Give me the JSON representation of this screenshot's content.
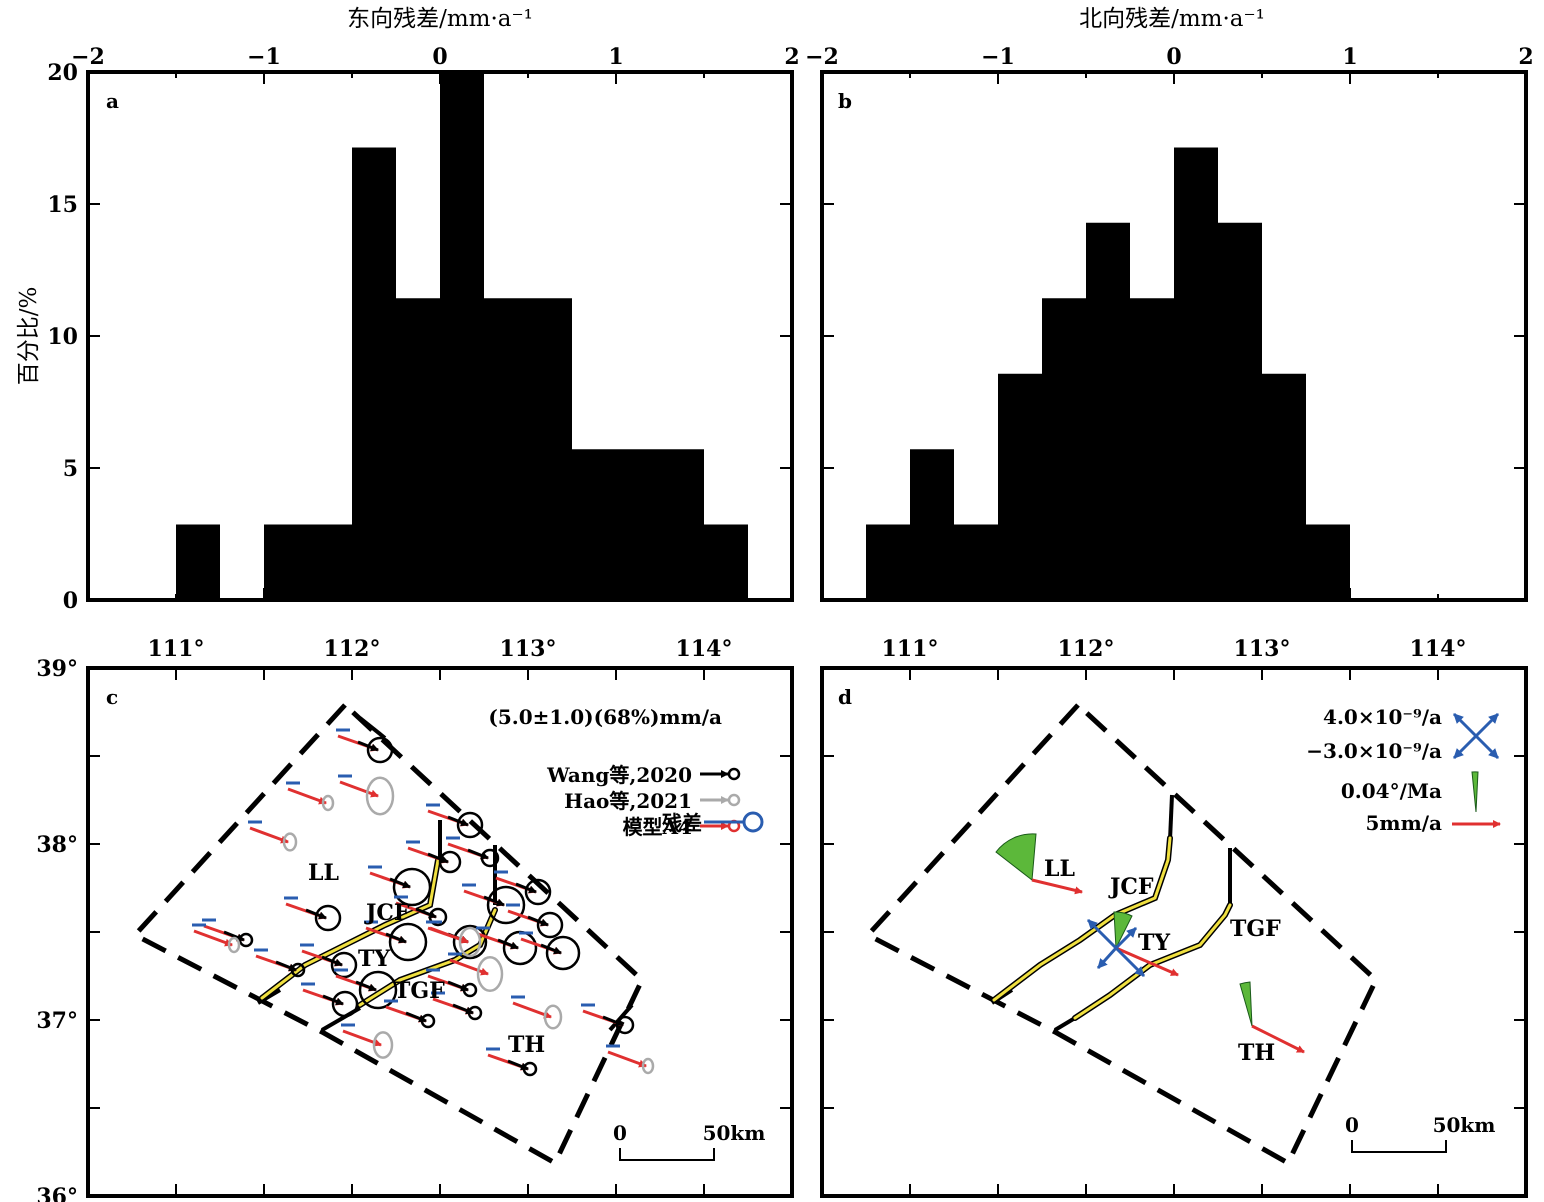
{
  "panels": {
    "a": {
      "tag": "a",
      "top_title": "东向残差/mm·a⁻¹",
      "ylabel": "百分比/%"
    },
    "b": {
      "tag": "b",
      "top_title": "北向残差/mm·a⁻¹"
    },
    "c": {
      "tag": "c"
    },
    "d": {
      "tag": "d"
    }
  },
  "hist_axes": {
    "x_ticks": [
      "−2",
      "−1",
      "0",
      "1",
      "2"
    ],
    "y_ticks": [
      "0",
      "5",
      "10",
      "15",
      "20"
    ]
  },
  "map_axes": {
    "x_ticks": [
      "111°",
      "112°",
      "113°",
      "114°"
    ],
    "y_ticks": [
      "39°",
      "38°",
      "37°",
      "36°"
    ]
  },
  "chart_data": [
    {
      "type": "bar",
      "panel": "a",
      "xlabel": "东向残差/mm·a⁻¹",
      "ylabel": "百分比/%",
      "xlim": [
        -2,
        2
      ],
      "ylim": [
        0,
        20
      ],
      "bin_width": 0.25,
      "bins": [
        {
          "x0": -1.5,
          "x1": -1.25,
          "y": 2.86
        },
        {
          "x0": -1.25,
          "x1": -1.0,
          "y": 0
        },
        {
          "x0": -1.0,
          "x1": -0.5,
          "y": 2.86
        },
        {
          "x0": -0.5,
          "x1": -0.25,
          "y": 17.14
        },
        {
          "x0": -0.25,
          "x1": 0.0,
          "y": 11.43
        },
        {
          "x0": 0.0,
          "x1": 0.25,
          "y": 20.0
        },
        {
          "x0": 0.25,
          "x1": 0.75,
          "y": 11.43
        },
        {
          "x0": 0.75,
          "x1": 1.5,
          "y": 5.71
        },
        {
          "x0": 1.5,
          "x1": 1.75,
          "y": 2.86
        }
      ],
      "grid": false
    },
    {
      "type": "bar",
      "panel": "b",
      "xlabel": "北向残差/mm·a⁻¹",
      "xlim": [
        -2,
        2
      ],
      "ylim": [
        0,
        20
      ],
      "bin_width": 0.25,
      "bins": [
        {
          "x0": -1.75,
          "x1": -1.5,
          "y": 2.86
        },
        {
          "x0": -1.5,
          "x1": -1.25,
          "y": 5.71
        },
        {
          "x0": -1.25,
          "x1": -1.0,
          "y": 2.86
        },
        {
          "x0": -1.0,
          "x1": -0.75,
          "y": 8.57
        },
        {
          "x0": -0.75,
          "x1": -0.5,
          "y": 11.43
        },
        {
          "x0": -0.5,
          "x1": -0.25,
          "y": 14.29
        },
        {
          "x0": -0.25,
          "x1": 0.0,
          "y": 11.43
        },
        {
          "x0": 0.0,
          "x1": 0.25,
          "y": 17.14
        },
        {
          "x0": 0.25,
          "x1": 0.5,
          "y": 14.29
        },
        {
          "x0": 0.5,
          "x1": 0.75,
          "y": 8.57
        },
        {
          "x0": 0.75,
          "x1": 1.0,
          "y": 2.86
        }
      ],
      "grid": false
    },
    {
      "type": "scatter",
      "panel": "c",
      "xlim": [
        110.5,
        114.5
      ],
      "ylim": [
        36,
        39
      ],
      "region_labels": [
        "LL",
        "JCF",
        "TY",
        "TGF",
        "TH"
      ],
      "legend": {
        "header": "(5.0±1.0)(68%)mm/a",
        "entries": [
          {
            "label": "Wang等,2020",
            "color": "#000000"
          },
          {
            "label": "Hao等,2021",
            "color": "#aaaaaa"
          },
          {
            "label": "模型A4",
            "color": "#e03030"
          },
          {
            "label": "残差",
            "color": "#2a5db0"
          }
        ],
        "placement": "top-right"
      },
      "scale_bar": [
        "0",
        "50km"
      ]
    },
    {
      "type": "scatter",
      "panel": "d",
      "xlim": [
        110.5,
        114.5
      ],
      "ylim": [
        36,
        39
      ],
      "region_labels": [
        "LL",
        "JCF",
        "TY",
        "TGF",
        "TH"
      ],
      "legend": {
        "entries": [
          {
            "label": "4.0×10⁻⁹/a",
            "color": "#2a5db0"
          },
          {
            "label": "−3.0×10⁻⁹/a",
            "color": "#2a5db0"
          },
          {
            "label": "0.04°/Ma",
            "color": "#5cb83a"
          },
          {
            "label": "5mm/a",
            "color": "#e03030"
          }
        ],
        "placement": "top-right"
      },
      "scale_bar": [
        "0",
        "50km"
      ]
    }
  ]
}
